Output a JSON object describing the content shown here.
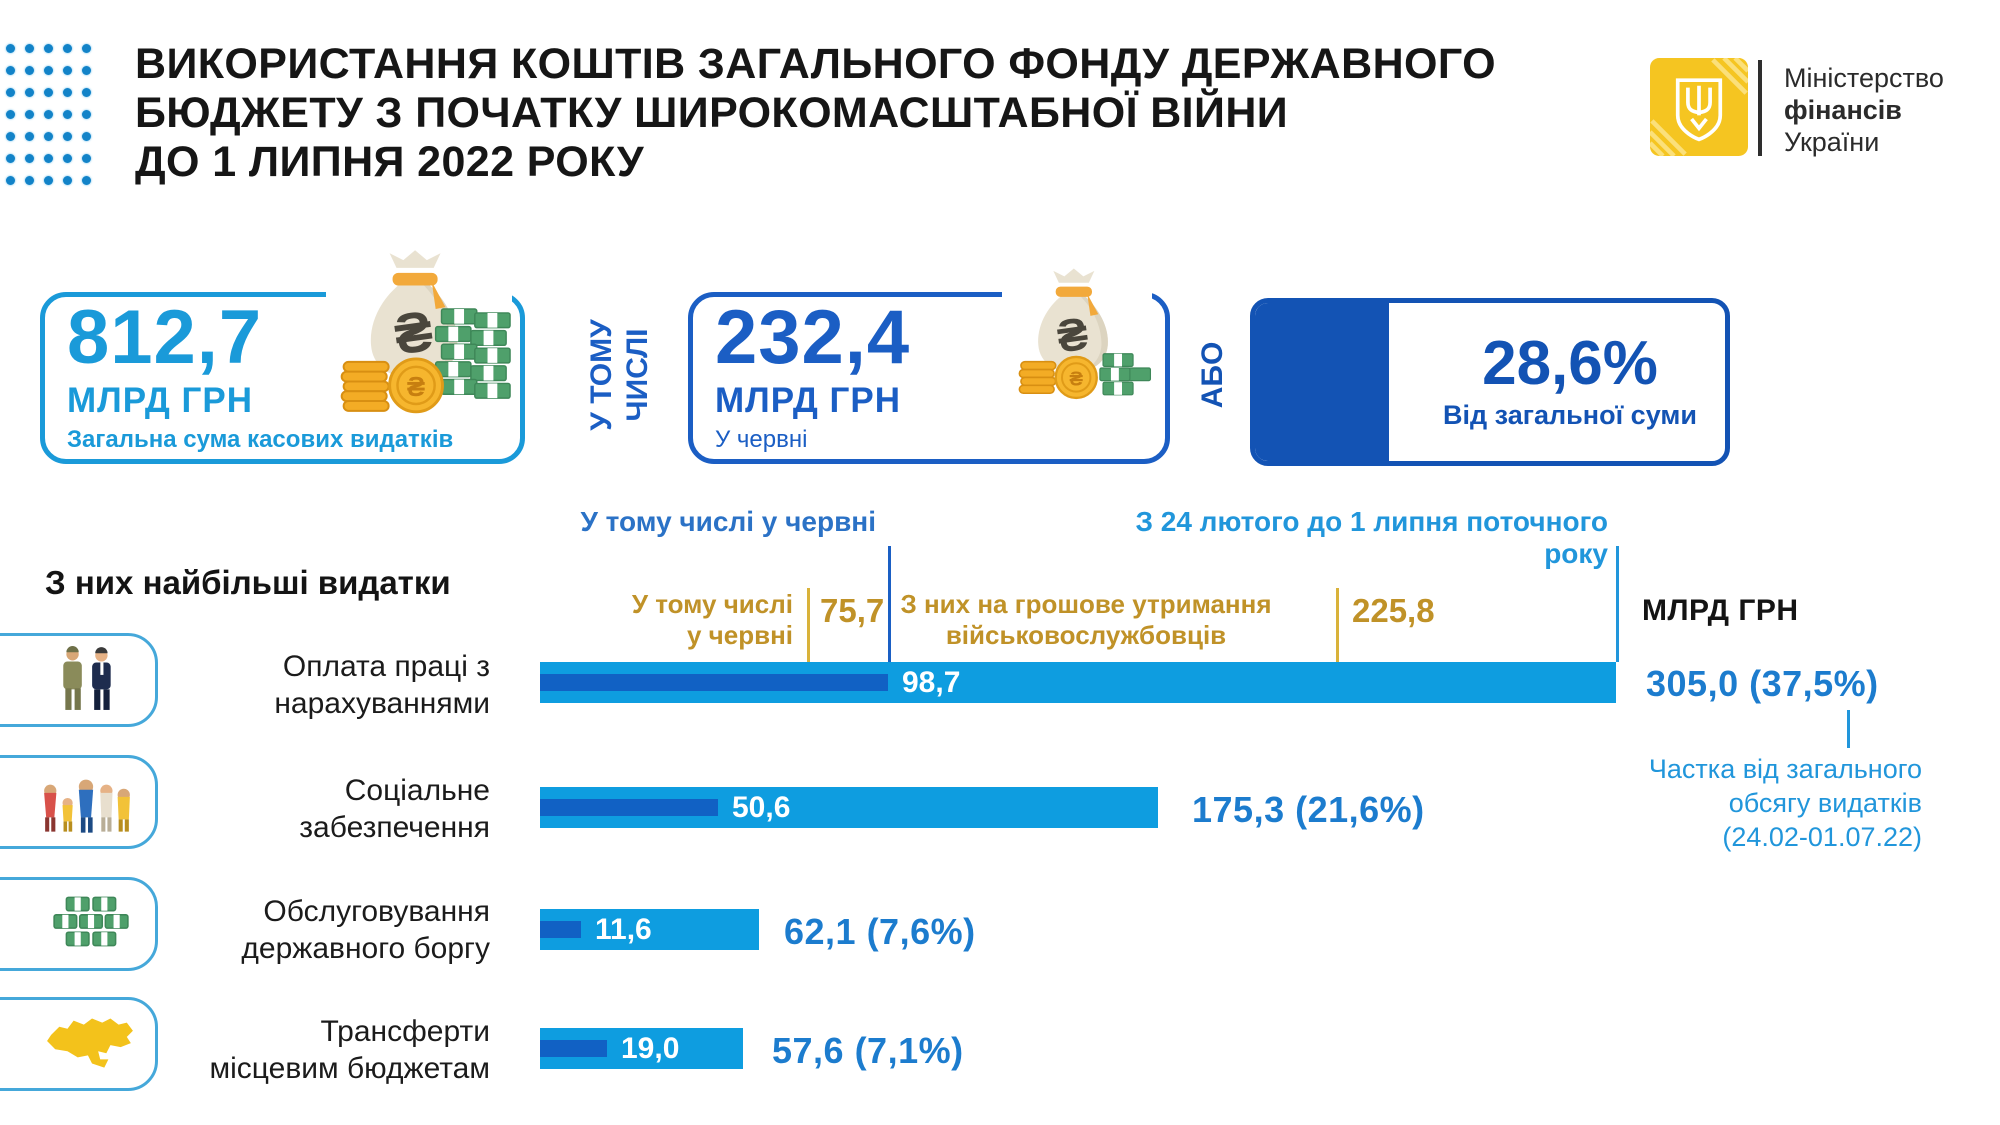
{
  "header": {
    "title_lines": [
      "ВИКОРИСТАННЯ КОШТІВ ЗАГАЛЬНОГО ФОНДУ ДЕРЖАВНОГО",
      "БЮДЖЕТУ З ПОЧАТКУ ШИРОКОМАСШТАБНОЇ ВІЙНИ",
      "ДО 1 ЛИПНЯ 2022 РОКУ"
    ],
    "ministry_lines": [
      "Міністерство",
      "фінансів",
      "України"
    ]
  },
  "summary": {
    "total": {
      "value": "812,7",
      "unit": "МЛРД ГРН",
      "caption": "Загальна сума касових видатків"
    },
    "in_total_lines": [
      "У ТОМУ",
      "ЧИСЛІ"
    ],
    "june": {
      "value": "232,4",
      "unit": "МЛРД ГРН",
      "caption": "У червні"
    },
    "or_label": "АБО",
    "share": {
      "value": "28,6%",
      "caption": "Від загальної суми",
      "pct": 28.6
    }
  },
  "section_heading": "З них найбільші видатки",
  "annotations": {
    "june_top_label": "У тому числі у червні",
    "period_label": "З 24 лютого до 1 липня поточного року",
    "mil_june_lines": [
      "У тому числі",
      "у червні"
    ],
    "mil_june_value": "75,7",
    "mil_total_lines": [
      "З них на грошове утримання",
      "військовослужбовців"
    ],
    "mil_total_value": "225,8",
    "unit_label": "МЛРД ГРН",
    "note_lines": [
      "Частка від загального",
      "обсягу видатків",
      "(24.02-01.07.22)"
    ]
  },
  "rows": [
    {
      "label_lines": [
        "Оплата праці з",
        "нарахуваннями"
      ],
      "june_label": "98,7",
      "total_label": "305,0 (37,5%)",
      "icon": "workers-icon"
    },
    {
      "label_lines": [
        "Соціальне",
        "забезпечення"
      ],
      "june_label": "50,6",
      "total_label": "175,3 (21,6%)",
      "icon": "family-icon"
    },
    {
      "label_lines": [
        "Обслуговування",
        "державного боргу"
      ],
      "june_label": "11,6",
      "total_label": "62,1 (7,6%)",
      "icon": "money-stack-icon"
    },
    {
      "label_lines": [
        "Трансферти",
        "місцевим бюджетам"
      ],
      "june_label": "19,0",
      "total_label": "57,6 (7,1%)",
      "icon": "ukraine-map-icon"
    }
  ],
  "chart_data": {
    "type": "bar",
    "unit": "млрд грн",
    "title": "З них найбільші видатки",
    "categories": [
      "Оплата праці з нарахуваннями",
      "Соціальне забезпечення",
      "Обслуговування державного боргу",
      "Трансферти місцевим бюджетам"
    ],
    "series": [
      {
        "name": "З 24 лютого до 1 липня поточного року (всього)",
        "values": [
          305.0,
          175.3,
          62.1,
          57.6
        ]
      },
      {
        "name": "У тому числі у червні",
        "values": [
          98.7,
          50.6,
          11.6,
          19.0
        ]
      }
    ],
    "share_of_total_pct": [
      37.5,
      21.6,
      7.6,
      7.1
    ],
    "annotations": {
      "military_pay_total": 225.8,
      "military_pay_june": 75.7
    },
    "xlim": [
      0,
      305
    ],
    "grid": false,
    "legend_position": "none"
  },
  "icons": {
    "hryvnia": "₴",
    "logo": "trident-emblem-icon",
    "summary_card": "money-bag-icon",
    "row_icons": [
      "workers-icon",
      "family-icon",
      "money-stack-icon",
      "ukraine-map-icon"
    ]
  },
  "colors": {
    "light_blue": "#1A9AD9",
    "royal_blue": "#1B5EC4",
    "deep_blue": "#1353B4",
    "bar_light": "#0E9DE0",
    "bar_dark": "#1161C4",
    "gold_text": "#C09228",
    "gold_line": "#D9B23A",
    "label_blue": "#2196DB",
    "value_blue": "#1C7CCE",
    "logo_yellow": "#F5C521"
  }
}
